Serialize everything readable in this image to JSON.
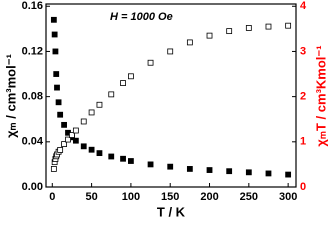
{
  "chart_data": {
    "type": "scatter",
    "annotation": "H = 1000 Oe",
    "x_label": "T / K",
    "y_label": "χₘ / cm³mol⁻¹",
    "y2_label": "χₘT / cm³Kmol⁻¹",
    "y2_label_color": "#ff0000",
    "x": [
      2,
      3,
      4,
      5,
      6,
      8,
      10,
      15,
      20,
      25,
      30,
      40,
      50,
      60,
      75,
      90,
      100,
      125,
      150,
      175,
      200,
      225,
      250,
      275,
      300
    ],
    "series": [
      {
        "color": "#000000",
        "marker": "filled-square",
        "axis": "y",
        "values": [
          0.148,
          0.135,
          0.12,
          0.1,
          0.088,
          0.075,
          0.064,
          0.055,
          0.048,
          0.044,
          0.041,
          0.036,
          0.033,
          0.03,
          0.027,
          0.025,
          0.023,
          0.02,
          0.018,
          0.016,
          0.015,
          0.014,
          0.013,
          0.012,
          0.011
        ]
      },
      {
        "color": "#000000",
        "marker": "open-square",
        "axis": "y2",
        "values": [
          0.4,
          0.55,
          0.62,
          0.68,
          0.72,
          0.78,
          0.82,
          0.95,
          1.05,
          1.15,
          1.25,
          1.45,
          1.65,
          1.82,
          2.05,
          2.3,
          2.45,
          2.75,
          3.0,
          3.2,
          3.35,
          3.45,
          3.52,
          3.55,
          3.57
        ]
      }
    ],
    "xlim": [
      -8,
      310
    ],
    "xticks": [
      0,
      50,
      100,
      150,
      200,
      250,
      300
    ],
    "ylim": [
      0,
      0.162
    ],
    "yticks": [
      {
        "value": 0,
        "label": "0.00"
      },
      0.04,
      0.08,
      0.12,
      0.16
    ],
    "y2lim": [
      0,
      4.05
    ],
    "y2ticks": [
      0,
      1,
      2,
      3,
      4
    ]
  }
}
